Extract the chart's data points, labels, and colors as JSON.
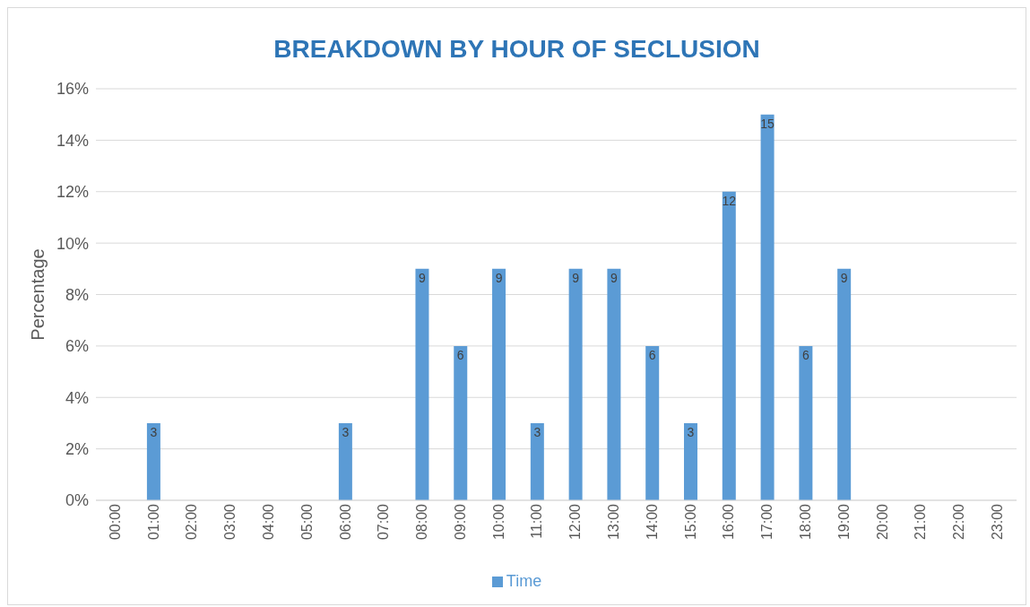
{
  "chart_data": {
    "type": "bar",
    "title": "BREAKDOWN BY HOUR OF SECLUSION",
    "ylabel": "Percentage",
    "categories": [
      "00:00",
      "01:00",
      "02:00",
      "03:00",
      "04:00",
      "05:00",
      "06:00",
      "07:00",
      "08:00",
      "09:00",
      "10:00",
      "11:00",
      "12:00",
      "13:00",
      "14:00",
      "15:00",
      "16:00",
      "17:00",
      "18:00",
      "19:00",
      "20:00",
      "21:00",
      "22:00",
      "23:00"
    ],
    "series": [
      {
        "name": "Time",
        "color": "#5b9bd5",
        "values": [
          null,
          3,
          null,
          null,
          null,
          null,
          3,
          null,
          9,
          6,
          9,
          3,
          9,
          9,
          6,
          3,
          12,
          15,
          6,
          9,
          null,
          null,
          null,
          null
        ]
      }
    ],
    "ylim": [
      0,
      16
    ],
    "yticks": [
      {
        "value": 0,
        "label": "0%"
      },
      {
        "value": 2,
        "label": "2%"
      },
      {
        "value": 4,
        "label": "4%"
      },
      {
        "value": 6,
        "label": "6%"
      },
      {
        "value": 8,
        "label": "8%"
      },
      {
        "value": 10,
        "label": "10%"
      },
      {
        "value": 12,
        "label": "12%"
      },
      {
        "value": 14,
        "label": "14%"
      },
      {
        "value": 16,
        "label": "16%"
      }
    ],
    "grid": "y",
    "legend": "bottom",
    "data_labels": true
  }
}
